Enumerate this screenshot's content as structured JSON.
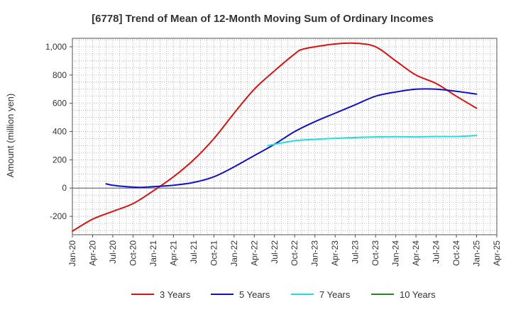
{
  "chart_data": {
    "type": "line",
    "title": "[6778]  Trend of Mean of 12-Month Moving Sum of Ordinary Incomes",
    "xlabel": "",
    "ylabel": "Amount (million yen)",
    "ylim": [
      -330,
      1060
    ],
    "yticks": [
      -200,
      0,
      200,
      400,
      600,
      800,
      "1,000"
    ],
    "ytick_values": [
      -200,
      0,
      200,
      400,
      600,
      800,
      1000
    ],
    "x_start": "Jan-20",
    "x_months_total": 63,
    "xticks": [
      "Jan-20",
      "Apr-20",
      "Jul-20",
      "Oct-20",
      "Jan-21",
      "Apr-21",
      "Jul-21",
      "Oct-21",
      "Jan-22",
      "Apr-22",
      "Jul-22",
      "Oct-22",
      "Jan-23",
      "Apr-23",
      "Jul-23",
      "Oct-23",
      "Jan-24",
      "Apr-24",
      "Jul-24",
      "Oct-24",
      "Jan-25",
      "Apr-25"
    ],
    "grid": true,
    "legend_position": "bottom",
    "series": [
      {
        "name": "3 Years",
        "color": "#dd1111",
        "x_months": [
          0,
          3,
          6,
          9,
          12,
          15,
          18,
          21,
          24,
          27,
          30,
          33,
          34,
          36,
          39,
          42,
          45,
          48,
          51,
          54,
          57,
          60
        ],
        "values": [
          -305,
          -220,
          -165,
          -110,
          -20,
          80,
          200,
          350,
          530,
          700,
          830,
          950,
          980,
          1000,
          1020,
          1025,
          1000,
          900,
          800,
          740,
          650,
          565
        ]
      },
      {
        "name": "5 Years",
        "color": "#1111cc",
        "x_months": [
          5,
          6,
          8,
          10,
          12,
          15,
          18,
          21,
          24,
          27,
          30,
          33,
          36,
          39,
          42,
          45,
          48,
          51,
          54,
          57,
          60
        ],
        "values": [
          30,
          20,
          10,
          5,
          10,
          20,
          40,
          80,
          150,
          230,
          310,
          400,
          470,
          530,
          590,
          650,
          680,
          700,
          700,
          685,
          665
        ]
      },
      {
        "name": "7 Years",
        "color": "#22dddd",
        "x_months": [
          29,
          30,
          33,
          36,
          39,
          42,
          45,
          48,
          51,
          54,
          57,
          60
        ],
        "values": [
          300,
          310,
          335,
          345,
          352,
          358,
          362,
          364,
          362,
          365,
          365,
          372
        ]
      },
      {
        "name": "10 Years",
        "color": "#228822",
        "x_months": [],
        "values": []
      }
    ]
  }
}
